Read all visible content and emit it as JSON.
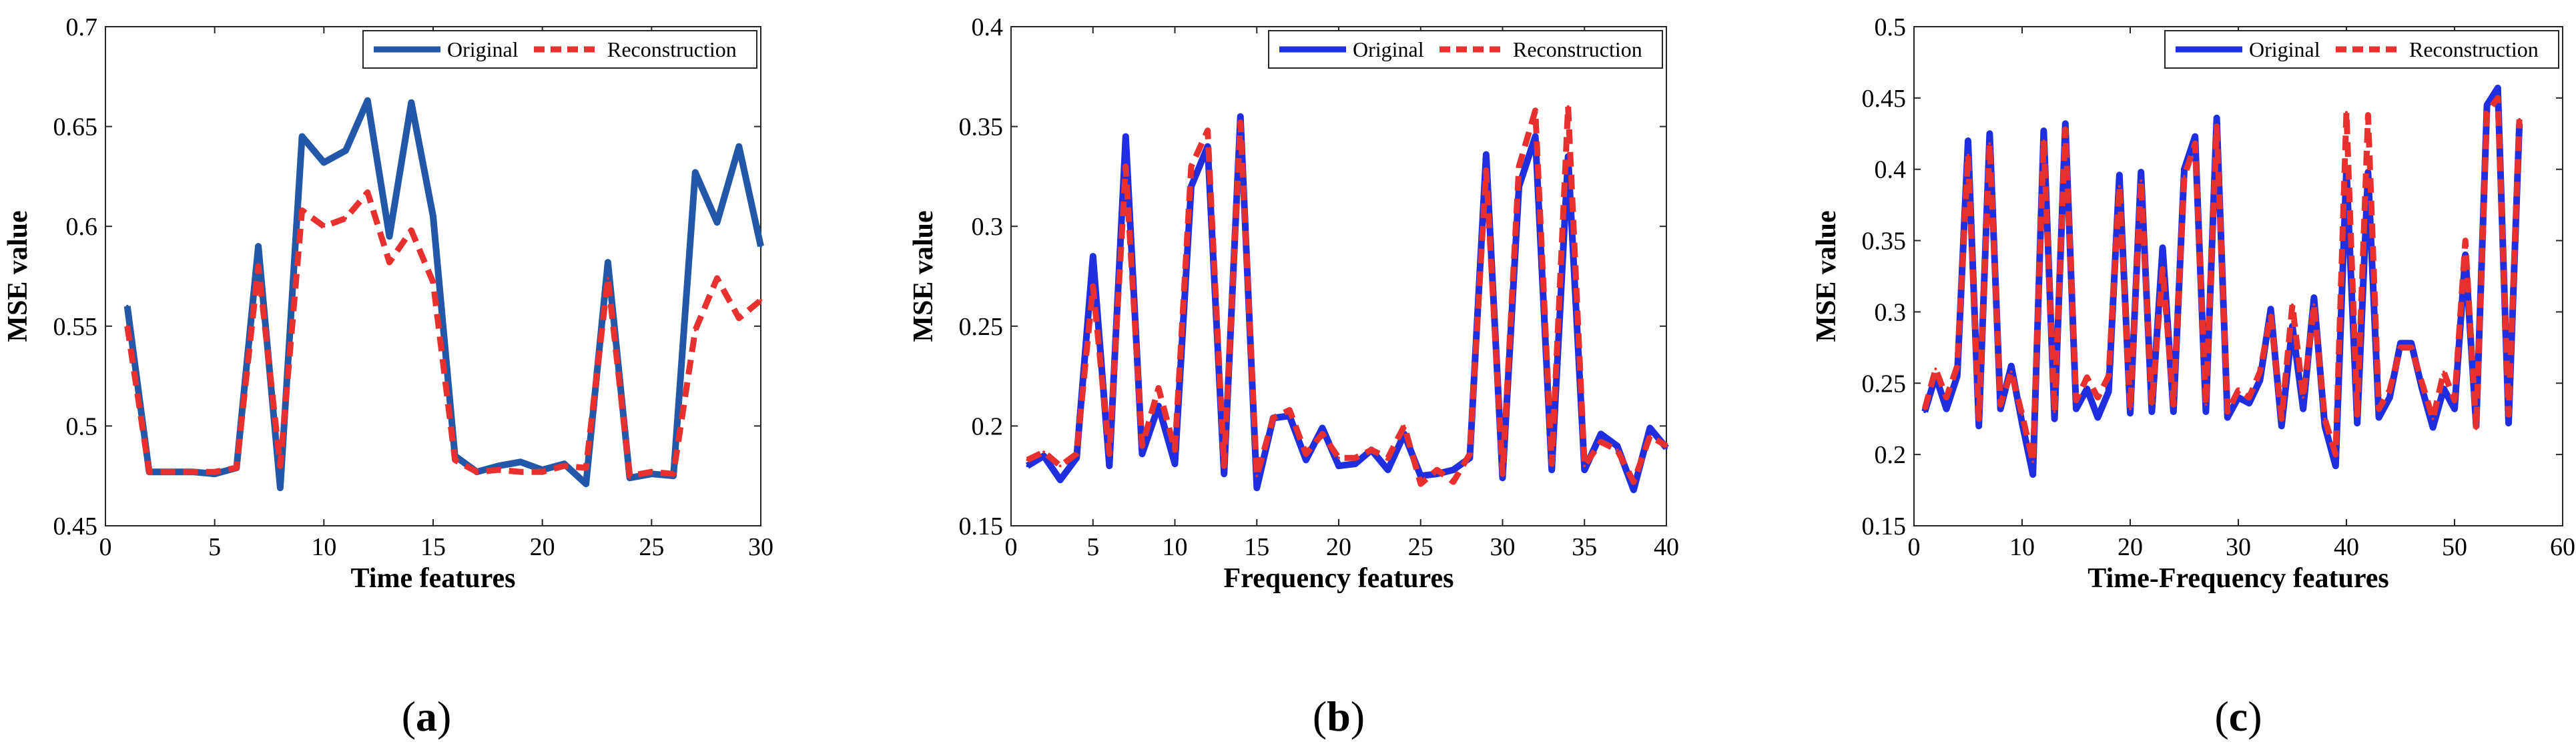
{
  "chart_data": [
    {
      "type": "line",
      "panel_label": "a",
      "xlabel": "Time features",
      "ylabel": "MSE value",
      "xlim": [
        0,
        30
      ],
      "ylim": [
        0.45,
        0.7
      ],
      "xticks": [
        "0",
        "5",
        "10",
        "15",
        "20",
        "25",
        "30"
      ],
      "yticks": [
        "0.45",
        "0.5",
        "0.55",
        "0.6",
        "0.65",
        "0.7"
      ],
      "legend_position": "top-right",
      "series": [
        {
          "name": "Original",
          "color": "#2358A8",
          "style": "solid",
          "x": [
            1,
            2,
            3,
            4,
            5,
            6,
            7,
            8,
            9,
            10,
            11,
            12,
            13,
            14,
            15,
            16,
            17,
            18,
            19,
            20,
            21,
            22,
            23,
            24,
            25,
            26,
            27,
            28,
            29,
            30
          ],
          "y": [
            0.56,
            0.477,
            0.477,
            0.477,
            0.476,
            0.479,
            0.59,
            0.469,
            0.645,
            0.632,
            0.638,
            0.663,
            0.595,
            0.662,
            0.605,
            0.485,
            0.477,
            0.48,
            0.482,
            0.478,
            0.481,
            0.471,
            0.582,
            0.474,
            0.476,
            0.475,
            0.627,
            0.602,
            0.64,
            0.59
          ]
        },
        {
          "name": "Reconstruction",
          "color": "#E8312E",
          "style": "dashed",
          "x": [
            1,
            2,
            3,
            4,
            5,
            6,
            7,
            8,
            9,
            10,
            11,
            12,
            13,
            14,
            15,
            16,
            17,
            18,
            19,
            20,
            21,
            22,
            23,
            24,
            25,
            26,
            27,
            28,
            29,
            30
          ],
          "y": [
            0.55,
            0.477,
            0.477,
            0.477,
            0.477,
            0.479,
            0.58,
            0.48,
            0.608,
            0.6,
            0.604,
            0.617,
            0.582,
            0.598,
            0.572,
            0.483,
            0.477,
            0.478,
            0.477,
            0.477,
            0.48,
            0.479,
            0.574,
            0.475,
            0.477,
            0.476,
            0.548,
            0.574,
            0.554,
            0.563
          ]
        }
      ]
    },
    {
      "type": "line",
      "panel_label": "b",
      "xlabel": "Frequency features",
      "ylabel": "MSE value",
      "xlim": [
        0,
        40
      ],
      "ylim": [
        0.15,
        0.4
      ],
      "xticks": [
        "0",
        "5",
        "10",
        "15",
        "20",
        "25",
        "30",
        "35",
        "40"
      ],
      "yticks": [
        "0.15",
        "0.2",
        "0.25",
        "0.3",
        "0.35",
        "0.4"
      ],
      "legend_position": "top-right",
      "series": [
        {
          "name": "Original",
          "color": "#1F2FE0",
          "style": "solid",
          "x": [
            1,
            2,
            3,
            4,
            5,
            6,
            7,
            8,
            9,
            10,
            11,
            12,
            13,
            14,
            15,
            16,
            17,
            18,
            19,
            20,
            21,
            22,
            23,
            24,
            25,
            26,
            27,
            28,
            29,
            30,
            31,
            32,
            33,
            34,
            35,
            36,
            37,
            38,
            39,
            40
          ],
          "y": [
            0.18,
            0.185,
            0.173,
            0.184,
            0.285,
            0.18,
            0.345,
            0.186,
            0.21,
            0.181,
            0.32,
            0.34,
            0.176,
            0.355,
            0.169,
            0.204,
            0.205,
            0.183,
            0.199,
            0.18,
            0.181,
            0.188,
            0.178,
            0.196,
            0.175,
            0.176,
            0.178,
            0.184,
            0.336,
            0.174,
            0.32,
            0.345,
            0.178,
            0.335,
            0.178,
            0.196,
            0.19,
            0.168,
            0.199,
            0.189
          ]
        },
        {
          "name": "Reconstruction",
          "color": "#E8312E",
          "style": "dashed",
          "x": [
            1,
            2,
            3,
            4,
            5,
            6,
            7,
            8,
            9,
            10,
            11,
            12,
            13,
            14,
            15,
            16,
            17,
            18,
            19,
            20,
            21,
            22,
            23,
            24,
            25,
            26,
            27,
            28,
            29,
            30,
            31,
            32,
            33,
            34,
            35,
            36,
            37,
            38,
            39,
            40
          ],
          "y": [
            0.183,
            0.187,
            0.18,
            0.186,
            0.27,
            0.186,
            0.33,
            0.19,
            0.219,
            0.188,
            0.33,
            0.348,
            0.18,
            0.352,
            0.175,
            0.204,
            0.208,
            0.186,
            0.196,
            0.184,
            0.184,
            0.188,
            0.184,
            0.2,
            0.171,
            0.178,
            0.172,
            0.186,
            0.328,
            0.176,
            0.33,
            0.358,
            0.181,
            0.36,
            0.18,
            0.192,
            0.188,
            0.172,
            0.195,
            0.19
          ]
        }
      ]
    },
    {
      "type": "line",
      "panel_label": "c",
      "xlabel": "Time-Frequency features",
      "ylabel": "MSE value",
      "xlim": [
        0,
        60
      ],
      "ylim": [
        0.15,
        0.5
      ],
      "xticks": [
        "0",
        "10",
        "20",
        "30",
        "40",
        "50",
        "60"
      ],
      "yticks": [
        "0.15",
        "0.2",
        "0.25",
        "0.3",
        "0.35",
        "0.4",
        "0.45",
        "0.5"
      ],
      "legend_position": "top-right",
      "series": [
        {
          "name": "Original",
          "color": "#1F2FE0",
          "style": "solid",
          "x": [
            1,
            2,
            3,
            4,
            5,
            6,
            7,
            8,
            9,
            10,
            11,
            12,
            13,
            14,
            15,
            16,
            17,
            18,
            19,
            20,
            21,
            22,
            23,
            24,
            25,
            26,
            27,
            28,
            29,
            30,
            31,
            32,
            33,
            34,
            35,
            36,
            37,
            38,
            39,
            40,
            41,
            42,
            43,
            44,
            45,
            46,
            47,
            48,
            49,
            50,
            51,
            52,
            53,
            54,
            55,
            56
          ],
          "y": [
            0.23,
            0.255,
            0.232,
            0.255,
            0.42,
            0.22,
            0.425,
            0.232,
            0.262,
            0.222,
            0.186,
            0.427,
            0.225,
            0.432,
            0.232,
            0.246,
            0.226,
            0.244,
            0.396,
            0.229,
            0.398,
            0.23,
            0.345,
            0.23,
            0.4,
            0.423,
            0.23,
            0.436,
            0.226,
            0.24,
            0.236,
            0.252,
            0.302,
            0.22,
            0.29,
            0.232,
            0.31,
            0.22,
            0.192,
            0.4,
            0.222,
            0.398,
            0.226,
            0.24,
            0.278,
            0.278,
            0.246,
            0.219,
            0.246,
            0.232,
            0.34,
            0.22,
            0.445,
            0.457,
            0.222,
            0.432
          ]
        },
        {
          "name": "Reconstruction",
          "color": "#E8312E",
          "style": "dashed",
          "x": [
            1,
            2,
            3,
            4,
            5,
            6,
            7,
            8,
            9,
            10,
            11,
            12,
            13,
            14,
            15,
            16,
            17,
            18,
            19,
            20,
            21,
            22,
            23,
            24,
            25,
            26,
            27,
            28,
            29,
            30,
            31,
            32,
            33,
            34,
            35,
            36,
            37,
            38,
            39,
            40,
            41,
            42,
            43,
            44,
            45,
            46,
            47,
            48,
            49,
            50,
            51,
            52,
            53,
            54,
            55,
            56
          ],
          "y": [
            0.232,
            0.26,
            0.24,
            0.262,
            0.41,
            0.225,
            0.418,
            0.235,
            0.258,
            0.228,
            0.195,
            0.42,
            0.23,
            0.428,
            0.238,
            0.254,
            0.24,
            0.255,
            0.388,
            0.232,
            0.392,
            0.235,
            0.33,
            0.235,
            0.395,
            0.418,
            0.235,
            0.43,
            0.23,
            0.245,
            0.24,
            0.258,
            0.298,
            0.225,
            0.305,
            0.24,
            0.305,
            0.225,
            0.2,
            0.44,
            0.228,
            0.438,
            0.232,
            0.245,
            0.275,
            0.275,
            0.25,
            0.225,
            0.258,
            0.238,
            0.35,
            0.218,
            0.44,
            0.45,
            0.228,
            0.435
          ]
        }
      ]
    }
  ]
}
